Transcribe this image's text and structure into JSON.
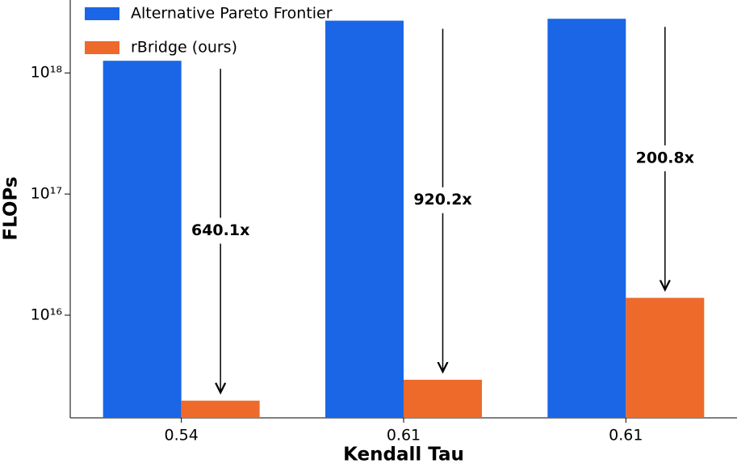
{
  "chart_data": {
    "type": "bar",
    "xlabel": "Kendall Tau",
    "ylabel": "FLOPs",
    "categories": [
      "0.54",
      "0.61",
      "0.61"
    ],
    "series": [
      {
        "name": "Alternative Pareto Frontier",
        "color": "#1a66e6",
        "values": [
          1.26e+18,
          2.7e+18,
          2.8e+18
        ]
      },
      {
        "name": "rBridge (ours)",
        "color": "#ee6a2a",
        "values": [
          1970000000000000.0,
          2930000000000000.0,
          1.39e+16
        ]
      }
    ],
    "annotations": [
      "640.1x",
      "920.2x",
      "200.8x"
    ],
    "log_scale": true,
    "ylim": [
      1420000000000000.0,
      4e+18
    ],
    "yticks": [
      {
        "value": 1e+16,
        "label": "10¹⁶"
      },
      {
        "value": 1e+17,
        "label": "10¹⁷"
      },
      {
        "value": 1e+18,
        "label": "10¹⁸"
      }
    ],
    "legend": "upper left"
  }
}
